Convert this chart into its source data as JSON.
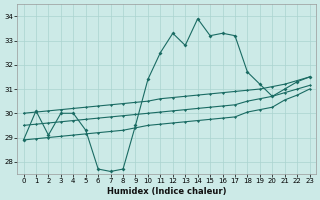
{
  "xlabel": "Humidex (Indice chaleur)",
  "background_color": "#cceae7",
  "grid_color": "#aad4d0",
  "line_color": "#1a6b63",
  "xlim": [
    -0.5,
    23.5
  ],
  "ylim": [
    27.5,
    34.5
  ],
  "yticks": [
    28,
    29,
    30,
    31,
    32,
    33,
    34
  ],
  "xticks": [
    0,
    1,
    2,
    3,
    4,
    5,
    6,
    7,
    8,
    9,
    10,
    11,
    12,
    13,
    14,
    15,
    16,
    17,
    18,
    19,
    20,
    21,
    22,
    23
  ],
  "jagged": [
    28.9,
    30.1,
    29.1,
    30.0,
    30.0,
    29.3,
    27.7,
    27.6,
    27.7,
    29.5,
    31.4,
    32.5,
    33.3,
    32.8,
    33.9,
    33.2,
    33.3,
    33.2,
    31.7,
    31.2,
    30.7,
    31.0,
    31.3,
    31.5
  ],
  "upper": [
    30.0,
    30.05,
    30.1,
    30.15,
    30.2,
    30.25,
    30.3,
    30.35,
    30.4,
    30.45,
    30.5,
    30.6,
    30.65,
    30.7,
    30.75,
    30.8,
    30.85,
    30.9,
    30.95,
    31.0,
    31.1,
    31.2,
    31.35,
    31.5
  ],
  "middle": [
    29.5,
    29.55,
    29.6,
    29.65,
    29.7,
    29.75,
    29.8,
    29.85,
    29.9,
    29.95,
    30.0,
    30.05,
    30.1,
    30.15,
    30.2,
    30.25,
    30.3,
    30.35,
    30.5,
    30.6,
    30.7,
    30.85,
    31.0,
    31.15
  ],
  "lower": [
    28.9,
    28.95,
    29.0,
    29.05,
    29.1,
    29.15,
    29.2,
    29.25,
    29.3,
    29.4,
    29.5,
    29.55,
    29.6,
    29.65,
    29.7,
    29.75,
    29.8,
    29.85,
    30.05,
    30.15,
    30.25,
    30.55,
    30.75,
    31.0
  ],
  "figsize": [
    3.2,
    2.0
  ],
  "dpi": 100
}
